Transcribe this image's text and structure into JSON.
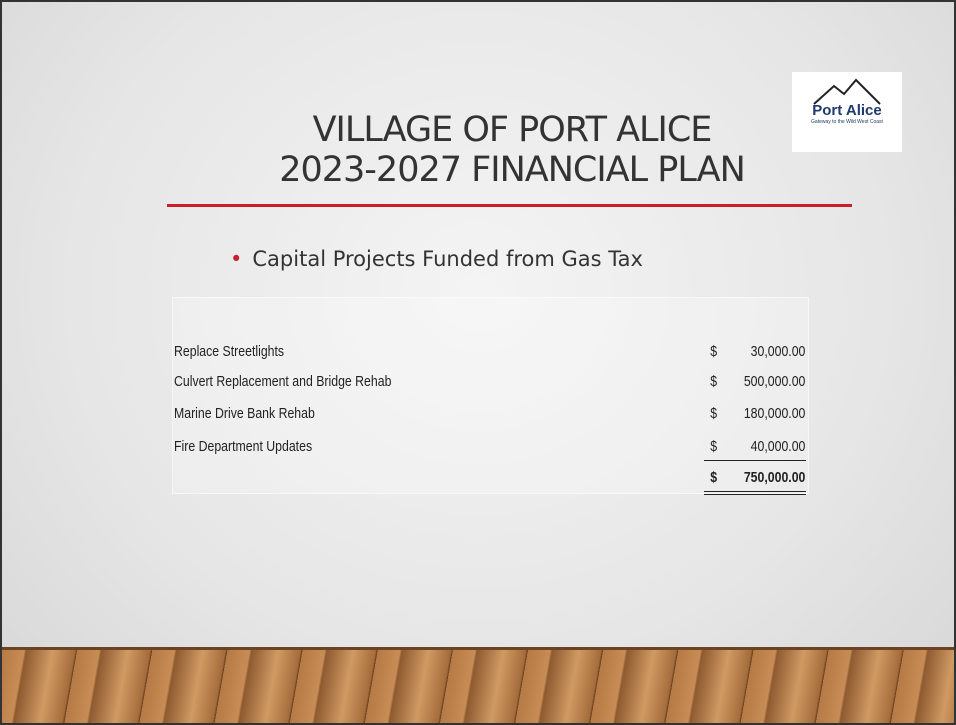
{
  "header": {
    "title_lines": [
      "VILLAGE OF PORT ALICE",
      "2023-2027 FINANCIAL PLAN"
    ]
  },
  "logo": {
    "name": "Port Alice",
    "tagline": "Gateway to the Wild West Coast"
  },
  "bullet": "Capital Projects Funded  from Gas Tax",
  "table": {
    "rows": [
      [
        "Replace Streetlights",
        "$",
        "30,000.00"
      ],
      [
        "Culvert Replacement and Bridge Rehab",
        "$",
        "500,000.00"
      ],
      [
        "Marine Drive Bank Rehab",
        "$",
        "180,000.00"
      ],
      [
        "Fire Department Updates",
        "$",
        "40,000.00"
      ]
    ],
    "total": [
      "$",
      "750,000.00"
    ]
  }
}
